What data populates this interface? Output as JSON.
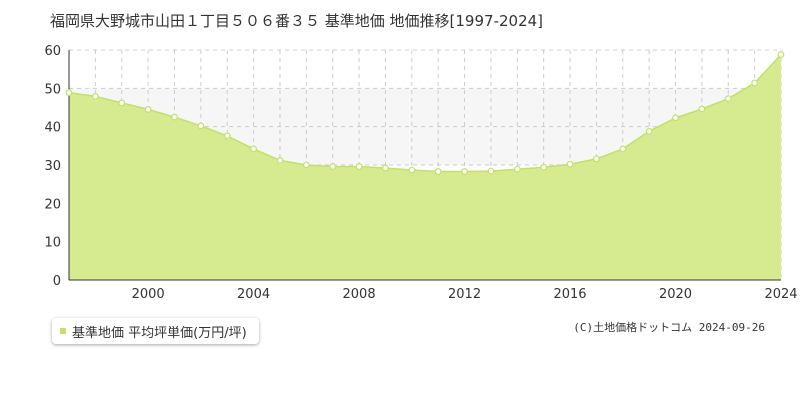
{
  "chart_title": "福岡県大野城市山田１丁目５０６番３５ 基準地価 地価推移[1997-2024]",
  "legend_label": "基準地価 平均坪単価(万円/坪)",
  "copyright": "(C)土地価格ドットコム 2024-09-26",
  "colors": {
    "area_fill": "#d6eb8f",
    "line": "#c2e06a",
    "marker_fill": "#ffffff",
    "band_fill": "#f6f6f6",
    "grid": "#cccccc",
    "axis": "#333333"
  },
  "chart_data": {
    "type": "area",
    "title": "福岡県大野城市山田１丁目５０６番３５ 基準地価 地価推移[1997-2024]",
    "xlabel": "",
    "ylabel": "",
    "x_ticks": [
      "2000",
      "2004",
      "2008",
      "2012",
      "2016",
      "2020",
      "2024"
    ],
    "y_ticks": [
      "0",
      "10",
      "20",
      "30",
      "40",
      "50",
      "60"
    ],
    "xlim": [
      1997,
      2024
    ],
    "ylim": [
      0,
      60
    ],
    "grid": true,
    "legend_position": "bottom-left",
    "band": [
      30,
      50
    ],
    "series": [
      {
        "name": "基準地価 平均坪単価(万円/坪)",
        "x": [
          1997,
          1998,
          1999,
          2000,
          2001,
          2002,
          2003,
          2004,
          2005,
          2006,
          2007,
          2008,
          2009,
          2010,
          2011,
          2012,
          2013,
          2014,
          2015,
          2016,
          2017,
          2018,
          2019,
          2020,
          2021,
          2022,
          2023,
          2024
        ],
        "values": [
          48.9,
          47.9,
          46.2,
          44.5,
          42.5,
          40.2,
          37.6,
          34.2,
          31.2,
          30.0,
          29.6,
          29.6,
          29.2,
          28.7,
          28.3,
          28.3,
          28.4,
          28.9,
          29.4,
          30.2,
          31.6,
          34.2,
          38.8,
          42.3,
          44.6,
          47.3,
          51.4,
          58.8
        ]
      }
    ]
  }
}
